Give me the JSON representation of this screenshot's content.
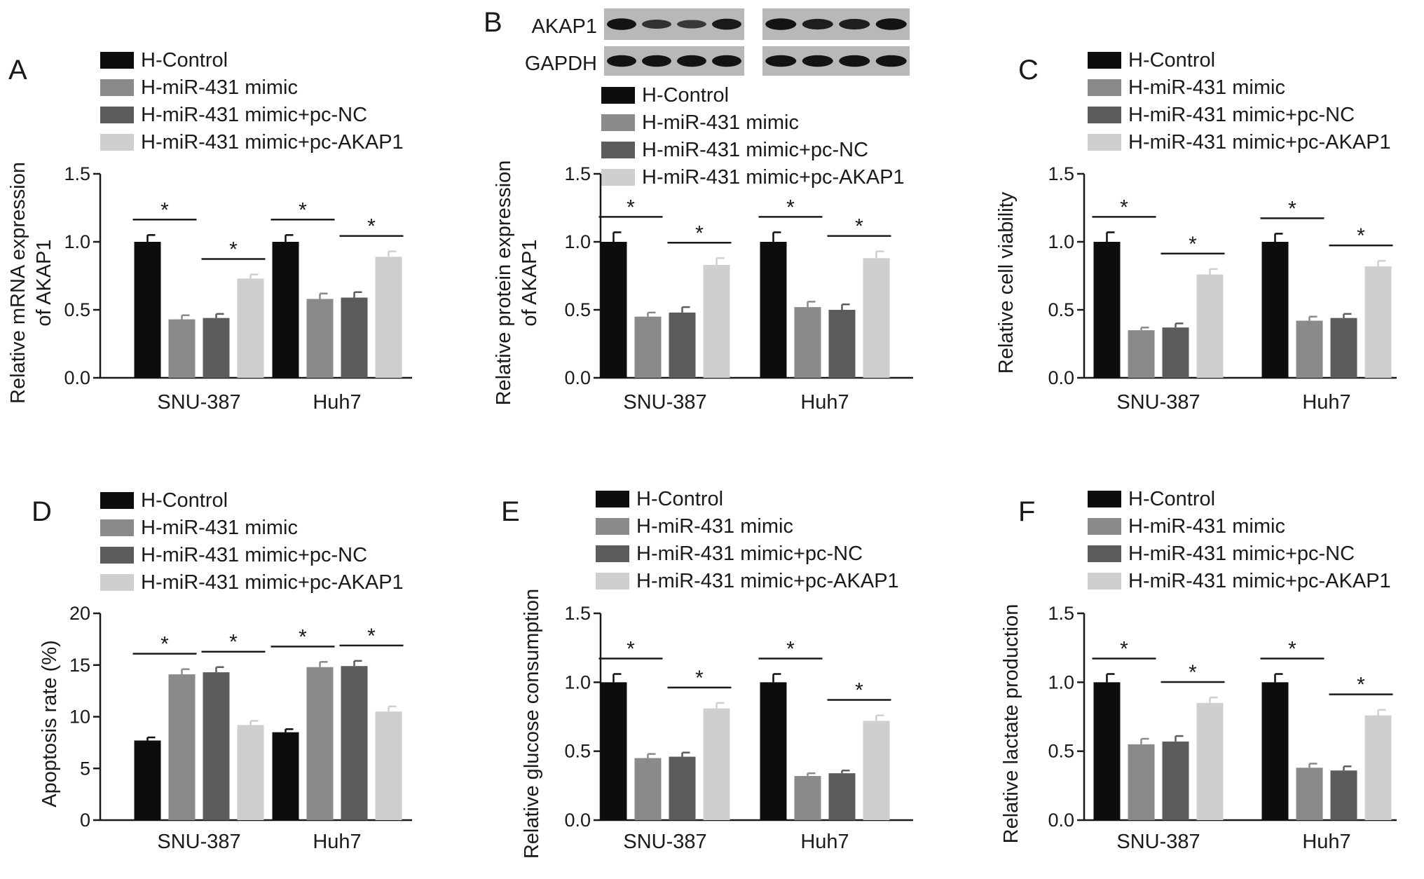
{
  "colors": {
    "h_control": "#0d0d0d",
    "h_mir431_mimic": "#8a8a8a",
    "h_mir431_mimic_pc_nc": "#5c5c5c",
    "h_mir431_mimic_pc_akap1": "#cfcfcf",
    "axis": "#1a1a1a"
  },
  "blot": {
    "panel_letter": "B",
    "labels": [
      "AKAP1",
      "GAPDH"
    ]
  },
  "chart_data": [
    {
      "panel": "A",
      "type": "bar",
      "title": "",
      "ylabel": "Relative mRNA expression of AKAP1",
      "ylabel_lines": [
        "Relative mRNA expression",
        "of AKAP1"
      ],
      "ylim": [
        0,
        1.5
      ],
      "yticks": [
        "0.0",
        "0.5",
        "1.0",
        "1.5"
      ],
      "categories": [
        "SNU-387",
        "Huh7"
      ],
      "legend_position": "top",
      "series": [
        {
          "name": "H-Control",
          "values": [
            1.0,
            1.0
          ],
          "errors": [
            0.05,
            0.05
          ]
        },
        {
          "name": "H-miR-431 mimic",
          "values": [
            0.43,
            0.58
          ],
          "errors": [
            0.03,
            0.04
          ]
        },
        {
          "name": "H-miR-431 mimic+pc-NC",
          "values": [
            0.44,
            0.59
          ],
          "errors": [
            0.03,
            0.04
          ]
        },
        {
          "name": "H-miR-431 mimic+pc-AKAP1",
          "values": [
            0.73,
            0.89
          ],
          "errors": [
            0.03,
            0.04
          ]
        }
      ],
      "significance": [
        {
          "category": 0,
          "between": [
            0,
            1
          ],
          "label": "*"
        },
        {
          "category": 0,
          "between": [
            2,
            3
          ],
          "label": "*"
        },
        {
          "category": 1,
          "between": [
            0,
            1
          ],
          "label": "*"
        },
        {
          "category": 1,
          "between": [
            2,
            3
          ],
          "label": "*"
        }
      ]
    },
    {
      "panel": "B",
      "type": "bar",
      "title": "",
      "ylabel": "Relative protein expression of AKAP1",
      "ylabel_lines": [
        "Relative protein expression",
        "of AKAP1"
      ],
      "ylim": [
        0,
        1.5
      ],
      "yticks": [
        "0.0",
        "0.5",
        "1.0",
        "1.5"
      ],
      "categories": [
        "SNU-387",
        "Huh7"
      ],
      "legend_position": "top",
      "series": [
        {
          "name": "H-Control",
          "values": [
            1.0,
            1.0
          ],
          "errors": [
            0.07,
            0.07
          ]
        },
        {
          "name": "H-miR-431 mimic",
          "values": [
            0.45,
            0.52
          ],
          "errors": [
            0.03,
            0.04
          ]
        },
        {
          "name": "H-miR-431 mimic+pc-NC",
          "values": [
            0.48,
            0.5
          ],
          "errors": [
            0.04,
            0.04
          ]
        },
        {
          "name": "H-miR-431 mimic+pc-AKAP1",
          "values": [
            0.83,
            0.88
          ],
          "errors": [
            0.05,
            0.05
          ]
        }
      ],
      "significance": [
        {
          "category": 0,
          "between": [
            0,
            1
          ],
          "label": "*"
        },
        {
          "category": 0,
          "between": [
            2,
            3
          ],
          "label": "*"
        },
        {
          "category": 1,
          "between": [
            0,
            1
          ],
          "label": "*"
        },
        {
          "category": 1,
          "between": [
            2,
            3
          ],
          "label": "*"
        }
      ]
    },
    {
      "panel": "C",
      "type": "bar",
      "title": "",
      "ylabel": "Relative cell viability",
      "ylabel_lines": [
        "Relative cell viability"
      ],
      "ylim": [
        0,
        1.5
      ],
      "yticks": [
        "0.0",
        "0.5",
        "1.0",
        "1.5"
      ],
      "categories": [
        "SNU-387",
        "Huh7"
      ],
      "legend_position": "top",
      "series": [
        {
          "name": "H-Control",
          "values": [
            1.0,
            1.0
          ],
          "errors": [
            0.07,
            0.06
          ]
        },
        {
          "name": "H-miR-431 mimic",
          "values": [
            0.35,
            0.42
          ],
          "errors": [
            0.02,
            0.03
          ]
        },
        {
          "name": "H-miR-431 mimic+pc-NC",
          "values": [
            0.37,
            0.44
          ],
          "errors": [
            0.03,
            0.03
          ]
        },
        {
          "name": "H-miR-431 mimic+pc-AKAP1",
          "values": [
            0.76,
            0.82
          ],
          "errors": [
            0.04,
            0.04
          ]
        }
      ],
      "significance": [
        {
          "category": 0,
          "between": [
            0,
            1
          ],
          "label": "*"
        },
        {
          "category": 0,
          "between": [
            2,
            3
          ],
          "label": "*"
        },
        {
          "category": 1,
          "between": [
            0,
            1
          ],
          "label": "*"
        },
        {
          "category": 1,
          "between": [
            2,
            3
          ],
          "label": "*"
        }
      ]
    },
    {
      "panel": "D",
      "type": "bar",
      "title": "",
      "ylabel": "Apoptosis rate (%)",
      "ylabel_lines": [
        "Apoptosis rate (%)"
      ],
      "ylim": [
        0,
        20
      ],
      "yticks": [
        "0",
        "5",
        "10",
        "15",
        "20"
      ],
      "categories": [
        "SNU-387",
        "Huh7"
      ],
      "legend_position": "top",
      "series": [
        {
          "name": "H-Control",
          "values": [
            7.7,
            8.5
          ],
          "errors": [
            0.3,
            0.3
          ]
        },
        {
          "name": "H-miR-431 mimic",
          "values": [
            14.1,
            14.8
          ],
          "errors": [
            0.5,
            0.5
          ]
        },
        {
          "name": "H-miR-431 mimic+pc-NC",
          "values": [
            14.3,
            14.9
          ],
          "errors": [
            0.5,
            0.5
          ]
        },
        {
          "name": "H-miR-431 mimic+pc-AKAP1",
          "values": [
            9.2,
            10.5
          ],
          "errors": [
            0.4,
            0.5
          ]
        }
      ],
      "significance": [
        {
          "category": 0,
          "between": [
            0,
            1
          ],
          "label": "*"
        },
        {
          "category": 0,
          "between": [
            2,
            3
          ],
          "label": "*"
        },
        {
          "category": 1,
          "between": [
            0,
            1
          ],
          "label": "*"
        },
        {
          "category": 1,
          "between": [
            2,
            3
          ],
          "label": "*"
        }
      ]
    },
    {
      "panel": "E",
      "type": "bar",
      "title": "",
      "ylabel": "Relative glucose consumption",
      "ylabel_lines": [
        "Relative glucose consumption"
      ],
      "ylim": [
        0,
        1.5
      ],
      "yticks": [
        "0.0",
        "0.5",
        "1.0",
        "1.5"
      ],
      "categories": [
        "SNU-387",
        "Huh7"
      ],
      "legend_position": "top",
      "series": [
        {
          "name": "H-Control",
          "values": [
            1.0,
            1.0
          ],
          "errors": [
            0.06,
            0.06
          ]
        },
        {
          "name": "H-miR-431 mimic",
          "values": [
            0.45,
            0.32
          ],
          "errors": [
            0.03,
            0.02
          ]
        },
        {
          "name": "H-miR-431 mimic+pc-NC",
          "values": [
            0.46,
            0.34
          ],
          "errors": [
            0.03,
            0.02
          ]
        },
        {
          "name": "H-miR-431 mimic+pc-AKAP1",
          "values": [
            0.81,
            0.72
          ],
          "errors": [
            0.04,
            0.04
          ]
        }
      ],
      "significance": [
        {
          "category": 0,
          "between": [
            0,
            1
          ],
          "label": "*"
        },
        {
          "category": 0,
          "between": [
            2,
            3
          ],
          "label": "*"
        },
        {
          "category": 1,
          "between": [
            0,
            1
          ],
          "label": "*"
        },
        {
          "category": 1,
          "between": [
            2,
            3
          ],
          "label": "*"
        }
      ]
    },
    {
      "panel": "F",
      "type": "bar",
      "title": "",
      "ylabel": "Relative lactate production",
      "ylabel_lines": [
        "Relative lactate production"
      ],
      "ylim": [
        0,
        1.5
      ],
      "yticks": [
        "0.0",
        "0.5",
        "1.0",
        "1.5"
      ],
      "categories": [
        "SNU-387",
        "Huh7"
      ],
      "legend_position": "top",
      "series": [
        {
          "name": "H-Control",
          "values": [
            1.0,
            1.0
          ],
          "errors": [
            0.06,
            0.06
          ]
        },
        {
          "name": "H-miR-431 mimic",
          "values": [
            0.55,
            0.38
          ],
          "errors": [
            0.04,
            0.03
          ]
        },
        {
          "name": "H-miR-431 mimic+pc-NC",
          "values": [
            0.57,
            0.36
          ],
          "errors": [
            0.04,
            0.03
          ]
        },
        {
          "name": "H-miR-431 mimic+pc-AKAP1",
          "values": [
            0.85,
            0.76
          ],
          "errors": [
            0.04,
            0.04
          ]
        }
      ],
      "significance": [
        {
          "category": 0,
          "between": [
            0,
            1
          ],
          "label": "*"
        },
        {
          "category": 0,
          "between": [
            2,
            3
          ],
          "label": "*"
        },
        {
          "category": 1,
          "between": [
            0,
            1
          ],
          "label": "*"
        },
        {
          "category": 1,
          "between": [
            2,
            3
          ],
          "label": "*"
        }
      ]
    }
  ]
}
